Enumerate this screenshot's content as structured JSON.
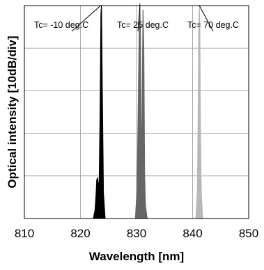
{
  "chart_data": {
    "type": "line",
    "xlabel": "Wavelength [nm]",
    "ylabel": "Optical intensity [10dB/div]",
    "xlim": [
      810,
      850
    ],
    "x_ticks": [
      810,
      820,
      830,
      840,
      850
    ],
    "y_divisions": 5,
    "grid": true,
    "series": [
      {
        "color": "#000000",
        "x": [
          822.3,
          822.6,
          822.8,
          822.9,
          823.05,
          823.2,
          823.35,
          823.5,
          823.65,
          823.75,
          823.9,
          824.1,
          824.4
        ],
        "y": [
          0.0,
          0.2,
          0.6,
          0.9,
          0.96,
          0.7,
          0.93,
          2.5,
          4.8,
          5.0,
          3.0,
          0.6,
          0.0
        ]
      },
      {
        "color": "#666666",
        "x": [
          829.8,
          830.1,
          830.3,
          830.5,
          830.6,
          830.7,
          830.85,
          831.0,
          831.15,
          831.3,
          831.45,
          831.6,
          831.9
        ],
        "y": [
          0.0,
          0.7,
          2.6,
          4.6,
          5.05,
          4.3,
          1.2,
          2.5,
          4.9,
          4.0,
          1.0,
          0.3,
          0.0
        ]
      },
      {
        "color": "#b8b8b8",
        "x": [
          840.6,
          840.85,
          841.0,
          841.1,
          841.2,
          841.3,
          841.4,
          841.55,
          841.8
        ],
        "y": [
          0.0,
          0.7,
          2.5,
          4.5,
          5.0,
          4.3,
          2.2,
          0.6,
          0.0
        ]
      }
    ],
    "annotations": [
      {
        "text": "Tc= -10 deg.C",
        "x": 823.6,
        "y": 5.0
      },
      {
        "text": "Tc= 25 deg.C",
        "x": 830.6,
        "y": 5.0
      },
      {
        "text": "Tc= 70 deg.C",
        "x": 841.2,
        "y": 5.0
      }
    ]
  }
}
